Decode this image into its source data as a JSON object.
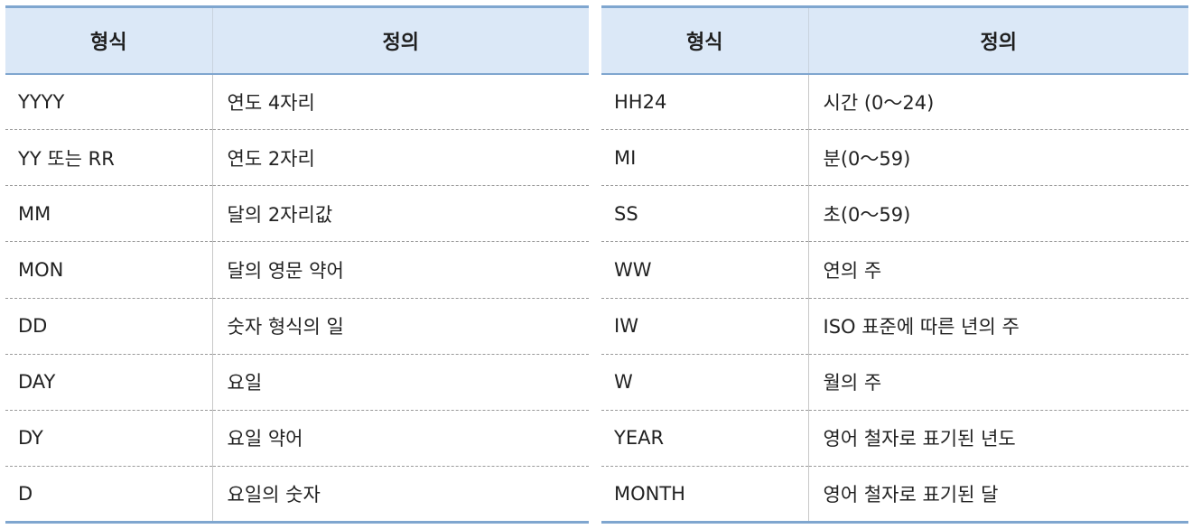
{
  "left_table": {
    "headers": [
      "형식",
      "정의"
    ],
    "rows": [
      [
        "YYYY",
        "연도 4자리"
      ],
      [
        "YY 또는 RR",
        "연도 2자리"
      ],
      [
        "MM",
        "달의 2자리값"
      ],
      [
        "MON",
        "달의 영문 약어"
      ],
      [
        "DD",
        "숫자 형식의 일"
      ],
      [
        "DAY",
        "요일"
      ],
      [
        "DY",
        "요일 약어"
      ],
      [
        "D",
        "요일의 숫자"
      ]
    ]
  },
  "right_table": {
    "headers": [
      "형식",
      "정의"
    ],
    "rows": [
      [
        "HH24",
        "시간 (0～24)"
      ],
      [
        "MI",
        "분(0～59)"
      ],
      [
        "SS",
        "초(0～59)"
      ],
      [
        "WW",
        "연의 주"
      ],
      [
        "IW",
        "ISO 표준에 따른 년의 주"
      ],
      [
        "W",
        "월의 주"
      ],
      [
        "YEAR",
        "영어 철자로 표기된 년도"
      ],
      [
        "MONTH",
        "영어 철자로 표기된 달"
      ]
    ]
  },
  "colors": {
    "header_bg": "#dbe8f7",
    "accent_border": "#7fa6cf",
    "row_divider": "#9a9a9a"
  }
}
